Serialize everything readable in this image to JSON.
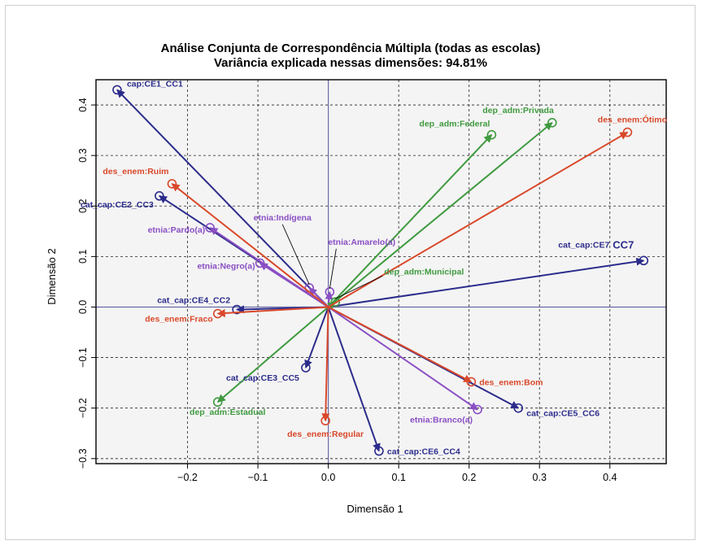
{
  "chart_data": {
    "type": "scatter",
    "title": "Análise Conjunta de Correspondência Múltipla (todas as escolas)",
    "subtitle": "Variância explicada nessas dimensões: 94.81%",
    "xlabel": "Dimensão 1",
    "ylabel": "Dimensão 2",
    "xlim": [
      -0.33,
      0.48
    ],
    "ylim": [
      -0.31,
      0.45
    ],
    "xticks": [
      -0.2,
      -0.1,
      0.0,
      0.1,
      0.2,
      0.3,
      0.4
    ],
    "yticks": [
      -0.3,
      -0.2,
      -0.1,
      0.0,
      0.1,
      0.2,
      0.3,
      0.4
    ],
    "xtick_labels": [
      "−0.2",
      "−0.1",
      "0.0",
      "0.1",
      "0.2",
      "0.3",
      "0.4"
    ],
    "ytick_labels": [
      "−0.3",
      "−0.2",
      "−0.1",
      "0.0",
      "0.1",
      "0.2",
      "0.3",
      "0.4"
    ],
    "grid": true,
    "origin": [
      0,
      0
    ],
    "colors": {
      "cap": "#2c2c8c",
      "etnia": "#8a4fc4",
      "dep_adm": "#3f9a3f",
      "des_enem": "#d9482a"
    },
    "series": [
      {
        "name": "cap",
        "color": "#2c2c8c",
        "points": [
          {
            "label": "cap:CE1_CC1",
            "x": -0.3,
            "y": 0.43
          },
          {
            "label": "cat_cap:CE2_CC3",
            "x": -0.24,
            "y": 0.22
          },
          {
            "label": "cat_cap:CE4_CC2",
            "x": -0.13,
            "y": -0.005
          },
          {
            "label": "cat_cap:CE3_CC5",
            "x": -0.032,
            "y": -0.12
          },
          {
            "label": "cat_cap:CE6_CC4",
            "x": 0.072,
            "y": -0.285
          },
          {
            "label": "cat_cap:CE5_CC6",
            "x": 0.27,
            "y": -0.2
          },
          {
            "label": "cat_cap:CE7",
            "x": 0.448,
            "y": 0.092
          }
        ]
      },
      {
        "name": "etnia",
        "color": "#8a4fc4",
        "points": [
          {
            "label": "etnia:Pardo(a)",
            "x": -0.168,
            "y": 0.157
          },
          {
            "label": "etnia:Negro(a)",
            "x": -0.097,
            "y": 0.087
          },
          {
            "label": "etnia:Indígena",
            "x": -0.027,
            "y": 0.038
          },
          {
            "label": "etnia:Amarelo(a)",
            "x": 0.002,
            "y": 0.03
          },
          {
            "label": "etnia:Branco(a)",
            "x": 0.212,
            "y": -0.203
          }
        ]
      },
      {
        "name": "dep_adm",
        "color": "#3f9a3f",
        "points": [
          {
            "label": "dep_adm:Privada",
            "x": 0.318,
            "y": 0.365
          },
          {
            "label": "dep_adm:Federal",
            "x": 0.232,
            "y": 0.341
          },
          {
            "label": "dep_adm:Municipal",
            "x": 0.01,
            "y": 0.01
          },
          {
            "label": "dep_adm:Estadual",
            "x": -0.157,
            "y": -0.188
          }
        ]
      },
      {
        "name": "des_enem",
        "color": "#d9482a",
        "points": [
          {
            "label": "des_enem:Ótimo",
            "x": 0.425,
            "y": 0.346
          },
          {
            "label": "des_enem:Ruim",
            "x": -0.222,
            "y": 0.244
          },
          {
            "label": "des_enem:Fraco",
            "x": -0.157,
            "y": -0.013
          },
          {
            "label": "des_enem:Bom",
            "x": 0.203,
            "y": -0.148
          },
          {
            "label": "des_enem:Regular",
            "x": -0.004,
            "y": -0.225
          }
        ]
      }
    ],
    "extra_text": [
      {
        "text": "CC7",
        "color": "#2c2c8c"
      }
    ]
  }
}
